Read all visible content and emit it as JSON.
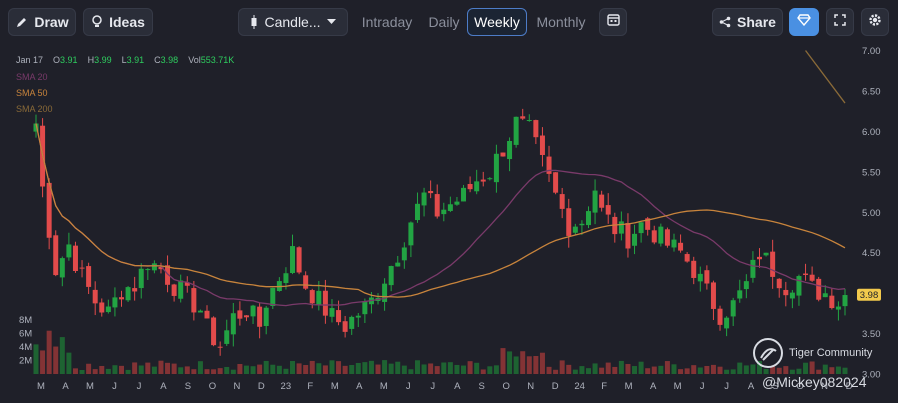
{
  "toolbar": {
    "draw_label": "Draw",
    "ideas_label": "Ideas",
    "chart_type_label": "Candle...",
    "tabs": [
      "Intraday",
      "Daily",
      "Weekly",
      "Monthly"
    ],
    "active_tab": "Weekly",
    "share_label": "Share"
  },
  "ohlc": {
    "date": "Jan 17",
    "o_label": "O",
    "o": "3.91",
    "h_label": "H",
    "h": "3.99",
    "l_label": "L",
    "l": "3.91",
    "c_label": "C",
    "c": "3.98",
    "vol_label": "Vol",
    "vol": "553.71K"
  },
  "indicators": [
    {
      "name": "SMA 20",
      "color": "#7a3a6a"
    },
    {
      "name": "SMA 50",
      "color": "#c8843c"
    },
    {
      "name": "SMA 200",
      "color": "#8a6a38"
    }
  ],
  "watermark": {
    "brand": "Tiger Community",
    "handle": "@Mickey082024"
  },
  "colors": {
    "up": "#22a443",
    "down": "#e24b4b",
    "accent": "#4a90e2",
    "price_tag": "#f2c94c"
  },
  "chart_data": {
    "type": "candlestick",
    "interval": "weekly",
    "ylim": [
      3.0,
      7.0
    ],
    "y_ticks": [
      "7.00",
      "6.50",
      "6.00",
      "5.50",
      "5.00",
      "4.50",
      "4.00",
      "3.50",
      "3.00"
    ],
    "x_ticks": [
      "M",
      "A",
      "M",
      "J",
      "J",
      "A",
      "S",
      "O",
      "N",
      "D",
      "23",
      "F",
      "M",
      "A",
      "M",
      "J",
      "J",
      "A",
      "S",
      "O",
      "N",
      "D",
      "24",
      "F",
      "M",
      "A",
      "M",
      "J",
      "J",
      "A",
      "S",
      "O",
      "N",
      "D"
    ],
    "volume_ticks": [
      "8M",
      "6M",
      "4M",
      "2M"
    ],
    "last_price": "3.98",
    "close_path": [
      [
        0,
        6.1
      ],
      [
        1,
        5.3
      ],
      [
        2,
        4.8
      ],
      [
        3,
        4.3
      ],
      [
        5,
        4.6
      ],
      [
        7,
        4.2
      ],
      [
        9,
        3.9
      ],
      [
        11,
        3.75
      ],
      [
        13,
        4.05
      ],
      [
        15,
        4.1
      ],
      [
        17,
        4.4
      ],
      [
        19,
        4.3
      ],
      [
        21,
        4.1
      ],
      [
        23,
        3.95
      ],
      [
        25,
        3.8
      ],
      [
        26,
        3.55
      ],
      [
        27,
        3.45
      ],
      [
        28,
        3.35
      ],
      [
        30,
        3.7
      ],
      [
        32,
        3.8
      ],
      [
        34,
        3.6
      ],
      [
        35,
        3.9
      ],
      [
        37,
        4.2
      ],
      [
        39,
        4.5
      ],
      [
        41,
        4.1
      ],
      [
        43,
        3.9
      ],
      [
        45,
        3.7
      ],
      [
        47,
        3.6
      ],
      [
        49,
        3.75
      ],
      [
        51,
        3.9
      ],
      [
        53,
        4.2
      ],
      [
        55,
        4.5
      ],
      [
        57,
        4.9
      ],
      [
        59,
        5.2
      ],
      [
        61,
        5.0
      ],
      [
        63,
        5.1
      ],
      [
        65,
        5.2
      ],
      [
        67,
        5.4
      ],
      [
        69,
        5.5
      ],
      [
        71,
        5.8
      ],
      [
        73,
        6.1
      ],
      [
        75,
        6.0
      ],
      [
        77,
        5.6
      ],
      [
        79,
        5.2
      ],
      [
        81,
        4.85
      ],
      [
        83,
        4.9
      ],
      [
        85,
        5.3
      ],
      [
        86,
        5.0
      ],
      [
        88,
        4.8
      ],
      [
        90,
        4.7
      ],
      [
        92,
        4.85
      ],
      [
        94,
        4.75
      ],
      [
        96,
        4.6
      ],
      [
        98,
        4.5
      ],
      [
        100,
        4.3
      ],
      [
        102,
        4.0
      ],
      [
        104,
        3.75
      ],
      [
        106,
        3.85
      ],
      [
        108,
        4.1
      ],
      [
        110,
        4.5
      ],
      [
        112,
        4.3
      ],
      [
        114,
        4.1
      ],
      [
        116,
        4.2
      ],
      [
        118,
        4.05
      ],
      [
        120,
        4.0
      ],
      [
        122,
        3.9
      ],
      [
        123,
        3.98
      ]
    ],
    "sma_200_path": [
      [
        117,
        7.0
      ],
      [
        123,
        6.35
      ]
    ],
    "volume_levels": [
      0.5,
      0.2,
      0.9,
      0.35
    ]
  }
}
